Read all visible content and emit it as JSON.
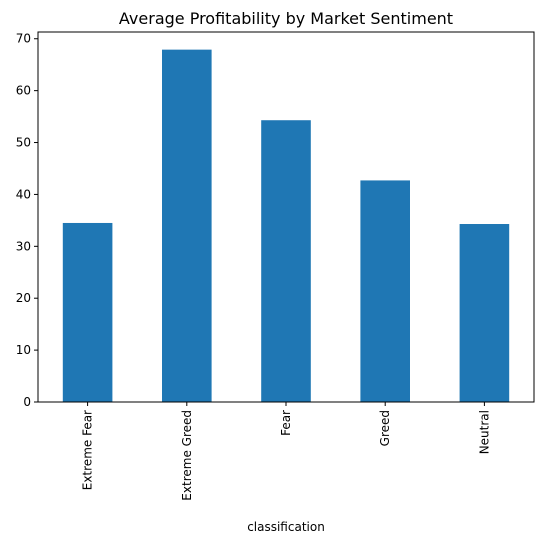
{
  "chart_data": {
    "type": "bar",
    "title": "Average Profitability by Market Sentiment",
    "xlabel": "classification",
    "ylabel": "",
    "categories": [
      "Extreme Fear",
      "Extreme Greed",
      "Fear",
      "Greed",
      "Neutral"
    ],
    "values": [
      34.5,
      67.9,
      54.3,
      42.7,
      34.3
    ],
    "ylim": [
      0,
      71.3
    ],
    "yticks": [
      0,
      10,
      20,
      30,
      40,
      50,
      60,
      70
    ],
    "bar_color": "#1f77b4",
    "grid": false,
    "legend": "none"
  }
}
